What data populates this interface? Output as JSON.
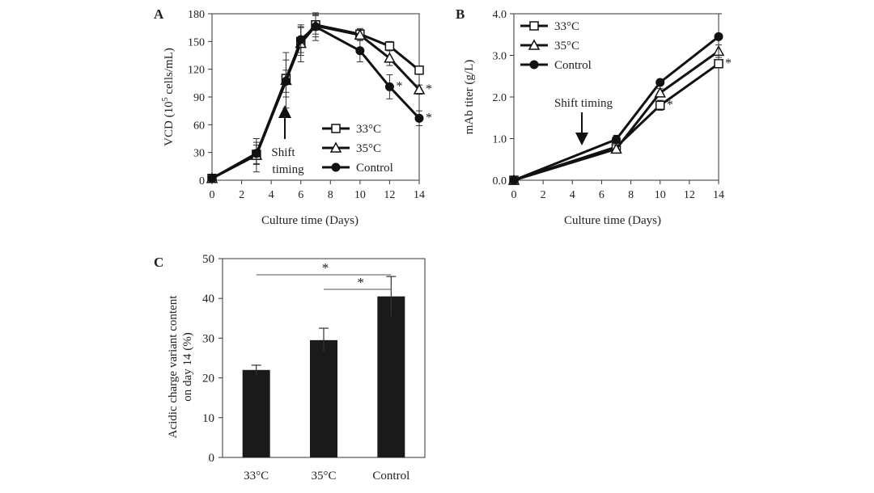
{
  "chart_data": [
    {
      "panel": "A",
      "type": "line",
      "xlabel": "Culture time (Days)",
      "ylabel_main": "VCD (10",
      "ylabel_sup": "5",
      "ylabel_tail": " cells/mL)",
      "xlim": [
        0,
        14
      ],
      "ylim": [
        0,
        180
      ],
      "xticks": [
        0,
        2,
        4,
        6,
        8,
        10,
        12,
        14
      ],
      "yticks": [
        0,
        30,
        60,
        90,
        120,
        150,
        180
      ],
      "annotation_line1": "Shift",
      "annotation_line2": "timing",
      "annotation_x": 5,
      "series": [
        {
          "name": "33°C",
          "marker": "square",
          "x": [
            0,
            3,
            5,
            6,
            7,
            10,
            12,
            14
          ],
          "y": [
            2,
            28,
            110,
            150,
            168,
            158,
            145,
            119
          ],
          "err": [
            2,
            10,
            20,
            15,
            10,
            6,
            5,
            4
          ]
        },
        {
          "name": "35°C",
          "marker": "triangle",
          "x": [
            0,
            3,
            5,
            6,
            7,
            10,
            12,
            14
          ],
          "y": [
            2,
            27,
            108,
            148,
            167,
            157,
            132,
            98
          ],
          "err": [
            2,
            18,
            30,
            20,
            12,
            6,
            8,
            5
          ]
        },
        {
          "name": "Control",
          "marker": "circle",
          "x": [
            0,
            3,
            5,
            6,
            7,
            10,
            12,
            14
          ],
          "y": [
            2,
            29,
            107,
            152,
            166,
            140,
            101,
            67
          ],
          "err": [
            2,
            12,
            12,
            14,
            15,
            12,
            13,
            8
          ]
        }
      ],
      "significance": [
        {
          "series": "Control",
          "x": 12,
          "label": "*"
        },
        {
          "series": "35°C",
          "x": 14,
          "label": "*"
        },
        {
          "series": "Control",
          "x": 14,
          "label": "*"
        }
      ]
    },
    {
      "panel": "B",
      "type": "line",
      "xlabel": "Culture time (Days)",
      "ylabel": "mAb titer (g/L)",
      "xlim": [
        0,
        14
      ],
      "ylim": [
        0,
        4
      ],
      "xticks": [
        0,
        2,
        4,
        6,
        8,
        10,
        12,
        14
      ],
      "yticks": [
        "0.0",
        "1.0",
        "2.0",
        "3.0",
        "4.0"
      ],
      "annotation_line1": "Shift timing",
      "annotation_x": 5,
      "series": [
        {
          "name": "33°C",
          "marker": "square",
          "x": [
            0,
            7,
            10,
            14
          ],
          "y": [
            0.0,
            0.8,
            1.8,
            2.8
          ],
          "err": [
            0.03,
            0.08,
            0.12,
            0.08
          ]
        },
        {
          "name": "35°C",
          "marker": "triangle",
          "x": [
            0,
            7,
            10,
            14
          ],
          "y": [
            0.0,
            0.75,
            2.1,
            3.1
          ],
          "err": [
            0.03,
            0.1,
            0.1,
            0.15
          ]
        },
        {
          "name": "Control",
          "marker": "circle",
          "x": [
            0,
            7,
            10,
            14
          ],
          "y": [
            0.0,
            0.98,
            2.35,
            3.45
          ],
          "err": [
            0.03,
            0.1,
            0.05,
            0.55
          ]
        }
      ],
      "significance": [
        {
          "series": "33°C",
          "x": 10,
          "label": "*"
        },
        {
          "series": "33°C",
          "x": 14,
          "label": "*"
        }
      ]
    },
    {
      "panel": "C",
      "type": "bar",
      "ylabel_line1": "Acidic charge variant content",
      "ylabel_line2": "on day 14 (%)",
      "ylim": [
        0,
        50
      ],
      "yticks": [
        0,
        10,
        20,
        30,
        40,
        50
      ],
      "categories": [
        "33°C",
        "35°C",
        "Control"
      ],
      "values": [
        22,
        29.5,
        40.5
      ],
      "err": [
        1.2,
        3,
        5
      ],
      "brackets": [
        {
          "from": 0,
          "to": 2,
          "label": "*"
        },
        {
          "from": 1,
          "to": 2,
          "label": "*"
        }
      ]
    }
  ]
}
